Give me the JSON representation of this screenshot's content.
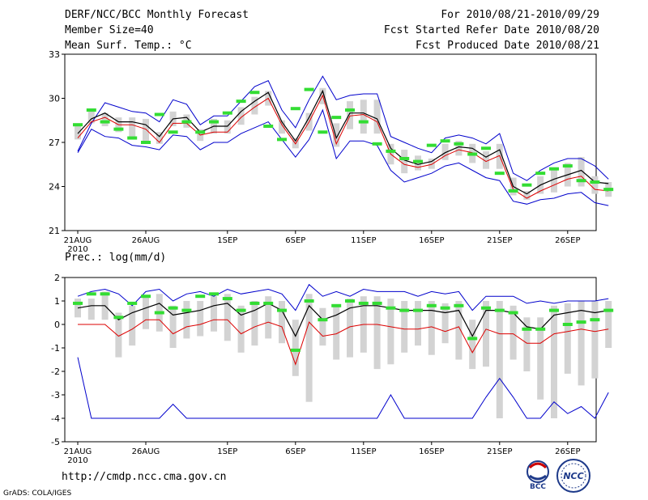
{
  "header": {
    "title": "DERF/NCC/BCC Monthly Forecast",
    "member_size": "Member Size=40",
    "variable": "Mean Surf. Temp.: °C",
    "period": "For 2010/08/21-2010/09/29",
    "fcst_started": "Fcst Started Refer Date 2010/08/20",
    "fcst_produced": "Fcst Produced Date 2010/08/21"
  },
  "footer": {
    "url": "http://cmdp.ncc.cma.gov.cn",
    "credit": "GrADS: COLA/IGES",
    "logo_bcc_label": "BCC",
    "logo_ncc_label": "NCC"
  },
  "colors": {
    "max_min": "#0000cc",
    "mean": "#000000",
    "ensemble_line": "#dd0000",
    "box": "#d3d3d3",
    "member_mark": "#33dd33"
  },
  "chart_data": [
    {
      "type": "line",
      "name": "temperature",
      "title": "Mean Surf. Temp.: °C",
      "ylim": [
        21,
        33
      ],
      "yticks": [
        21,
        24,
        27,
        30,
        33
      ],
      "xlim": [
        0,
        39
      ],
      "xticks": [
        {
          "x": 0,
          "label": "21AUG",
          "sublabel": "2010"
        },
        {
          "x": 5,
          "label": "26AUG"
        },
        {
          "x": 11,
          "label": "1SEP"
        },
        {
          "x": 16,
          "label": "6SEP"
        },
        {
          "x": 21,
          "label": "11SEP"
        },
        {
          "x": 26,
          "label": "16SEP"
        },
        {
          "x": 31,
          "label": "21SEP"
        },
        {
          "x": 36,
          "label": "26SEP"
        }
      ],
      "max": [
        26.4,
        28.3,
        29.7,
        29.4,
        29.1,
        29.0,
        28.4,
        29.9,
        29.6,
        28.2,
        28.8,
        28.8,
        29.8,
        30.8,
        31.2,
        29.2,
        28.0,
        29.9,
        31.5,
        29.9,
        30.2,
        30.3,
        30.3,
        27.4,
        27.0,
        26.6,
        26.3,
        27.3,
        27.5,
        27.3,
        26.9,
        27.6,
        24.9,
        24.4,
        25.1,
        25.6,
        25.9,
        25.9,
        25.4,
        24.5
      ],
      "mean": [
        27.6,
        28.6,
        29.0,
        28.4,
        28.4,
        28.2,
        27.4,
        28.6,
        28.7,
        27.7,
        28.1,
        28.1,
        29.1,
        29.8,
        30.4,
        28.4,
        27.1,
        28.7,
        30.5,
        27.3,
        29.0,
        29.0,
        28.6,
        26.6,
        25.8,
        25.5,
        25.7,
        26.3,
        26.7,
        26.6,
        26.0,
        26.5,
        24.0,
        23.5,
        24.1,
        24.5,
        24.8,
        25.1,
        24.3,
        24.2
      ],
      "ensemble": [
        27.3,
        28.4,
        28.7,
        28.2,
        28.2,
        27.9,
        27.0,
        28.3,
        28.3,
        27.5,
        27.7,
        27.7,
        28.7,
        29.4,
        30.0,
        28.2,
        26.9,
        28.4,
        30.2,
        26.9,
        28.8,
        28.9,
        28.4,
        26.2,
        25.5,
        25.3,
        25.5,
        26.1,
        26.5,
        26.3,
        25.7,
        26.1,
        23.8,
        23.2,
        23.7,
        24.1,
        24.5,
        24.7,
        23.8,
        23.7
      ],
      "min": [
        26.3,
        27.9,
        27.4,
        27.3,
        26.8,
        26.7,
        26.5,
        27.5,
        27.4,
        26.5,
        27.0,
        27.0,
        27.6,
        28.0,
        28.4,
        27.2,
        26.0,
        27.2,
        29.2,
        25.9,
        27.1,
        27.1,
        26.8,
        25.1,
        24.3,
        24.6,
        24.9,
        25.4,
        25.6,
        25.1,
        24.6,
        24.4,
        23.0,
        22.8,
        23.1,
        23.2,
        23.5,
        23.6,
        22.9,
        22.7
      ],
      "box_high": [
        28.1,
        29.1,
        29.0,
        28.7,
        28.7,
        28.6,
        27.7,
        29.1,
        28.9,
        27.9,
        28.6,
        28.5,
        29.4,
        30.1,
        30.5,
        28.5,
        27.3,
        29.0,
        30.7,
        28.3,
        29.8,
        29.9,
        29.9,
        26.9,
        26.5,
        26.1,
        25.9,
        26.9,
        27.1,
        26.9,
        26.4,
        26.9,
        24.6,
        23.7,
        24.7,
        25.1,
        25.6,
        26.0,
        24.7,
        24.3
      ],
      "box_low": [
        27.2,
        28.3,
        28.1,
        27.7,
        27.4,
        27.0,
        26.9,
        28.1,
        28.0,
        27.1,
        27.6,
        27.6,
        28.2,
        28.9,
        29.5,
        27.6,
        26.6,
        27.8,
        29.6,
        26.7,
        27.9,
        27.6,
        27.6,
        25.5,
        24.9,
        25.1,
        25.2,
        25.8,
        26.1,
        25.6,
        25.2,
        25.2,
        23.4,
        23.1,
        23.5,
        23.6,
        24.0,
        24.0,
        23.5,
        23.3
      ],
      "members": [
        28.2,
        29.2,
        28.4,
        27.9,
        27.3,
        27.0,
        28.9,
        27.7,
        28.4,
        27.7,
        28.4,
        29.0,
        29.8,
        30.4,
        28.1,
        27.2,
        29.3,
        30.6,
        27.7,
        28.7,
        29.2,
        28.4,
        26.9,
        26.4,
        25.9,
        25.7,
        26.8,
        27.1,
        26.9,
        26.2,
        26.6,
        24.9,
        23.7,
        24.1,
        24.9,
        25.2,
        25.4,
        24.4,
        24.3,
        23.8
      ]
    },
    {
      "type": "line",
      "name": "precipitation",
      "title": "Prec.: log(mm/d)",
      "ylim": [
        -5,
        2
      ],
      "yticks": [
        -5,
        -4,
        -3,
        -2,
        -1,
        0,
        1,
        2
      ],
      "xlim": [
        0,
        39
      ],
      "xticks": [
        {
          "x": 0,
          "label": "21AUG",
          "sublabel": "2010"
        },
        {
          "x": 5,
          "label": "26AUG"
        },
        {
          "x": 11,
          "label": "1SEP"
        },
        {
          "x": 16,
          "label": "6SEP"
        },
        {
          "x": 21,
          "label": "11SEP"
        },
        {
          "x": 26,
          "label": "16SEP"
        },
        {
          "x": 31,
          "label": "21SEP"
        },
        {
          "x": 36,
          "label": "26SEP"
        }
      ],
      "max": [
        1.2,
        1.4,
        1.5,
        1.3,
        0.8,
        1.4,
        1.5,
        1.0,
        1.3,
        1.4,
        1.2,
        1.5,
        1.3,
        1.4,
        1.5,
        1.3,
        0.6,
        1.7,
        1.2,
        1.4,
        1.2,
        1.5,
        1.4,
        1.4,
        1.4,
        1.2,
        1.4,
        1.3,
        1.4,
        0.6,
        1.2,
        1.2,
        1.2,
        0.9,
        1.0,
        0.9,
        1.0,
        1.0,
        1.0,
        1.1
      ],
      "mean": [
        0.7,
        0.8,
        0.8,
        0.2,
        0.5,
        0.7,
        0.9,
        0.4,
        0.5,
        0.6,
        0.8,
        0.9,
        0.4,
        0.6,
        0.9,
        0.6,
        -0.5,
        0.8,
        0.2,
        0.4,
        0.7,
        0.8,
        0.8,
        0.7,
        0.6,
        0.6,
        0.6,
        0.5,
        0.6,
        -0.5,
        0.6,
        0.6,
        0.5,
        -0.1,
        -0.2,
        0.4,
        0.5,
        0.6,
        0.5,
        0.6
      ],
      "ensemble": [
        0.0,
        0.0,
        0.0,
        -0.5,
        -0.2,
        0.2,
        0.2,
        -0.4,
        -0.1,
        0.0,
        0.2,
        0.2,
        -0.4,
        -0.1,
        0.1,
        -0.1,
        -1.7,
        0.1,
        -0.5,
        -0.4,
        -0.1,
        0.0,
        0.0,
        -0.1,
        -0.2,
        -0.2,
        -0.1,
        -0.3,
        -0.1,
        -1.2,
        -0.2,
        -0.4,
        -0.4,
        -0.8,
        -0.8,
        -0.4,
        -0.3,
        -0.2,
        -0.3,
        -0.2
      ],
      "min": [
        -1.4,
        -4.0,
        -4.0,
        -4.0,
        -4.0,
        -4.0,
        -4.0,
        -3.4,
        -4.0,
        -4.0,
        -4.0,
        -4.0,
        -4.0,
        -4.0,
        -4.0,
        -4.0,
        -4.0,
        -4.0,
        -4.0,
        -4.0,
        -4.0,
        -4.0,
        -4.0,
        -3.0,
        -4.0,
        -4.0,
        -4.0,
        -4.0,
        -4.0,
        -4.0,
        -3.1,
        -2.3,
        -3.1,
        -4.0,
        -4.0,
        -3.3,
        -3.8,
        -3.5,
        -4.0,
        -2.9
      ],
      "box_high": [
        1.1,
        1.1,
        1.4,
        0.5,
        0.8,
        1.2,
        1.3,
        0.8,
        1.0,
        1.0,
        1.2,
        1.3,
        0.8,
        1.0,
        1.2,
        1.0,
        0.2,
        1.3,
        0.7,
        0.8,
        1.1,
        1.2,
        1.2,
        1.1,
        1.0,
        1.0,
        1.0,
        0.9,
        1.0,
        0.2,
        1.0,
        1.0,
        0.8,
        0.3,
        0.3,
        0.8,
        0.9,
        1.0,
        1.0,
        1.0
      ],
      "box_low": [
        0.3,
        0.2,
        0.2,
        -1.4,
        -0.9,
        -0.2,
        -0.3,
        -1.0,
        -0.6,
        -0.5,
        -0.3,
        -0.7,
        -1.2,
        -0.9,
        -0.6,
        -0.8,
        -2.2,
        -3.3,
        -0.9,
        -1.5,
        -1.4,
        -1.2,
        -1.9,
        -1.7,
        -1.2,
        -0.9,
        -1.3,
        -0.8,
        -1.5,
        -1.9,
        -1.8,
        -4.0,
        -1.5,
        -2.0,
        -3.2,
        -4.0,
        -2.1,
        -2.6,
        -2.3,
        -1.0
      ],
      "members": [
        0.9,
        1.3,
        1.3,
        0.3,
        0.9,
        1.2,
        0.5,
        0.7,
        0.6,
        1.2,
        1.3,
        1.1,
        0.6,
        0.9,
        0.9,
        0.6,
        -1.1,
        1.0,
        0.2,
        0.8,
        1.0,
        0.9,
        0.9,
        0.7,
        0.6,
        0.6,
        0.8,
        0.7,
        0.8,
        -0.6,
        0.7,
        0.6,
        0.5,
        -0.2,
        -0.2,
        0.6,
        0.0,
        0.1,
        0.2,
        0.6
      ]
    }
  ]
}
